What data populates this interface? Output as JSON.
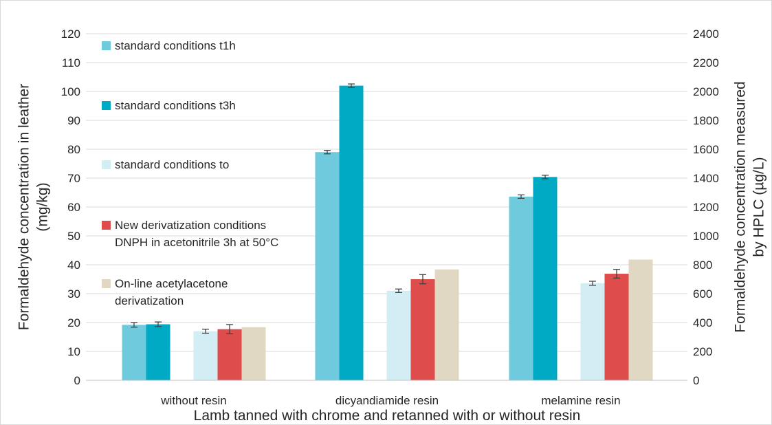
{
  "chart_data": {
    "type": "bar",
    "xlabel": "Lamb tanned with chrome and retanned with or without resin",
    "ylabel_left": [
      "Formaldehyde concentration in leather",
      "(mg/kg)"
    ],
    "ylabel_right": [
      "Formaldehyde concentration measured",
      "by HPLC (µg/L)"
    ],
    "ylim_left": [
      0,
      120
    ],
    "ylim_right": [
      0,
      2400
    ],
    "yticks_left": [
      "0",
      "10",
      "20",
      "30",
      "40",
      "50",
      "60",
      "70",
      "80",
      "90",
      "100",
      "110",
      "120"
    ],
    "yticks_right": [
      "0",
      "200",
      "400",
      "600",
      "800",
      "1000",
      "1200",
      "1400",
      "1600",
      "1800",
      "2000",
      "2200",
      "2400"
    ],
    "grid": true,
    "categories": [
      "without resin",
      "dicyandiamide resin",
      "melamine resin"
    ],
    "series": [
      {
        "name": "standard conditions t1h",
        "color": "#6ecadc",
        "axis": "left",
        "values": [
          19.2,
          79.0,
          63.6
        ],
        "errors": [
          0.8,
          0.6,
          0.6
        ]
      },
      {
        "name": "standard conditions t3h",
        "color": "#00aac4",
        "axis": "left",
        "values": [
          19.4,
          102.0,
          70.4
        ],
        "errors": [
          0.8,
          0.6,
          0.6
        ]
      },
      {
        "name": "standard conditions to",
        "color": "#d3edf5",
        "axis": "left",
        "values": [
          17.0,
          31.0,
          33.6
        ],
        "errors": [
          0.7,
          0.6,
          0.7
        ]
      },
      {
        "name": [
          "New derivatization conditions",
          "DNPH in acetonitrile 3h at 50°C"
        ],
        "color": "#de4c4c",
        "axis": "left",
        "values": [
          17.7,
          35.0,
          36.9
        ],
        "errors": [
          1.6,
          1.6,
          1.5
        ]
      },
      {
        "name": [
          "On-line acetylacetone",
          "derivatization"
        ],
        "color": "#e0d8c2",
        "axis": "right",
        "values": [
          368,
          768,
          836
        ],
        "errors": [
          0,
          0,
          0
        ]
      }
    ]
  }
}
